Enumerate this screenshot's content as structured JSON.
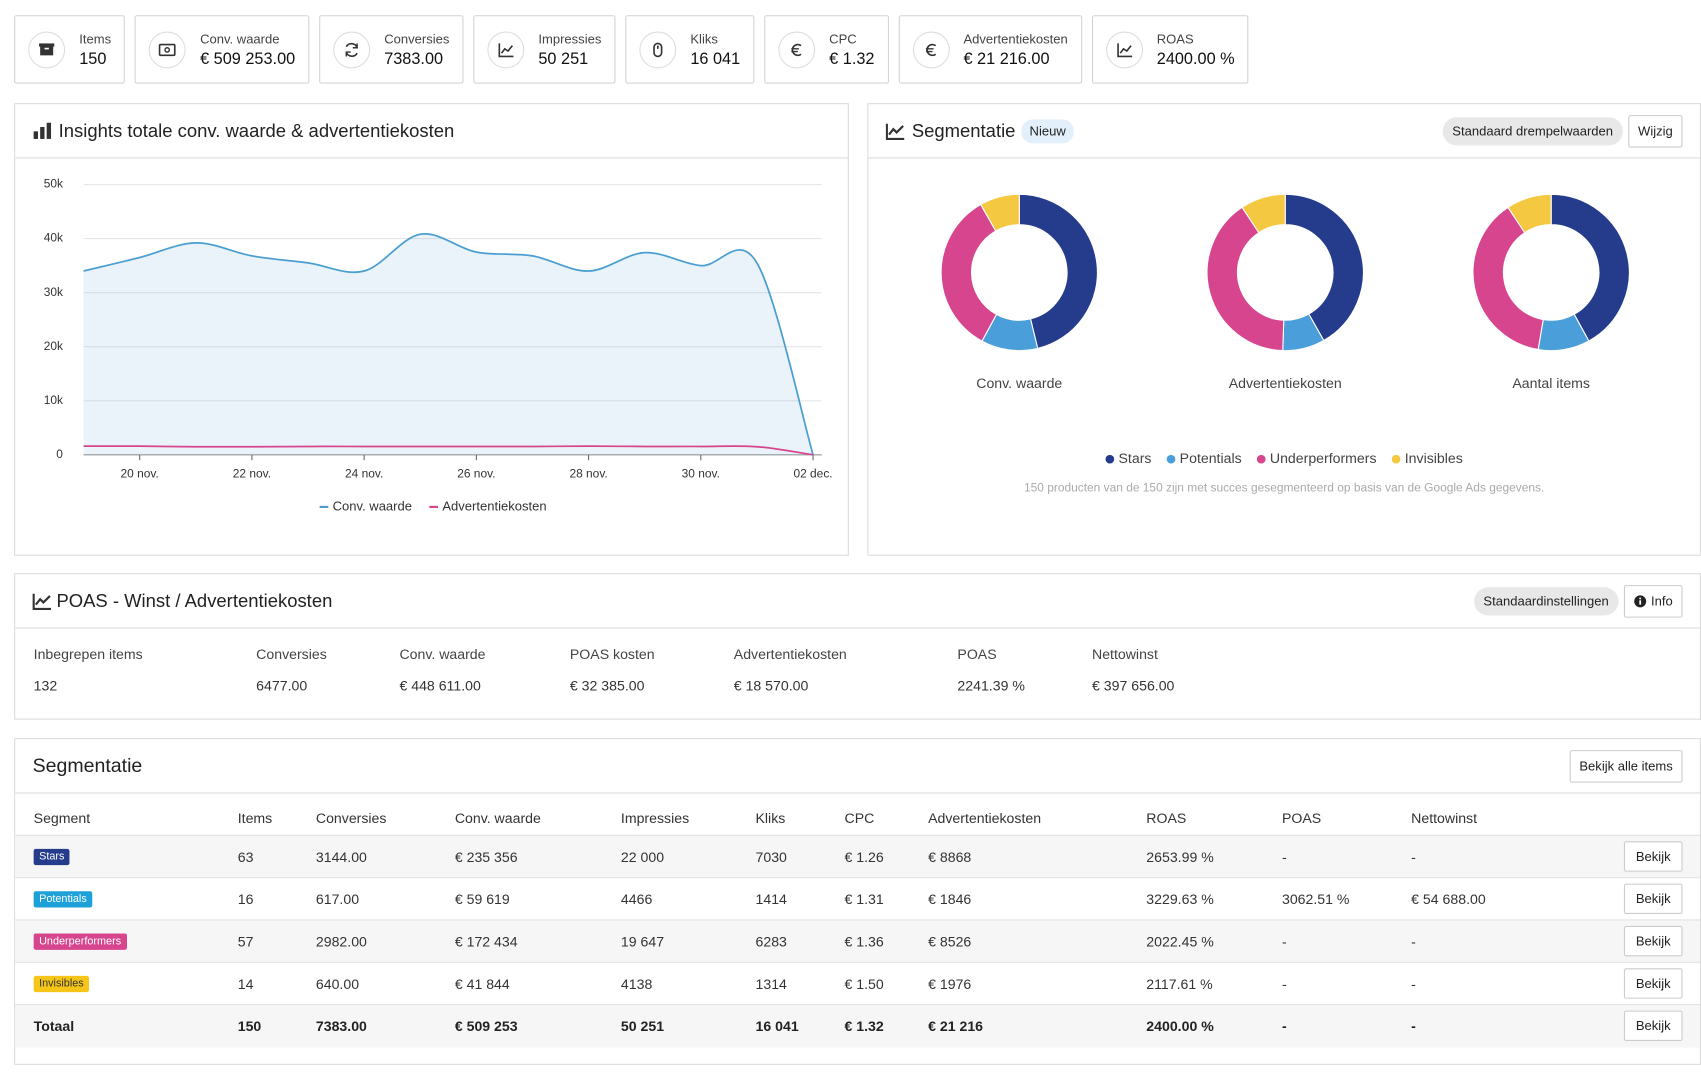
{
  "kpis": [
    {
      "label": "Items",
      "value": "150"
    },
    {
      "label": "Conv. waarde",
      "value": "€ 509 253.00"
    },
    {
      "label": "Conversies",
      "value": "7383.00"
    },
    {
      "label": "Impressies",
      "value": "50 251"
    },
    {
      "label": "Kliks",
      "value": "16 041"
    },
    {
      "label": "CPC",
      "value": "€ 1.32"
    },
    {
      "label": "Advertentiekosten",
      "value": "€ 21 216.00"
    },
    {
      "label": "ROAS",
      "value": "2400.00 %"
    }
  ],
  "segmentatie_panel": {
    "title": "Segmentatie",
    "badge": "Nieuw",
    "buttons": [
      "Standaard drempelwaarden",
      "Wijzig"
    ],
    "footnote": "150 producten van de 150 zijn met succes gesegmenteerd op basis van de Google Ads gegevens."
  },
  "poas": {
    "title": "POAS - Winst / Advertentiekosten",
    "buttons": [
      "Standaardinstellingen",
      "Info"
    ],
    "columns": [
      {
        "label": "Inbegrepen items",
        "value": "132"
      },
      {
        "label": "Conversies",
        "value": "6477.00"
      },
      {
        "label": "Conv. waarde",
        "value": "€ 448 611.00"
      },
      {
        "label": "POAS kosten",
        "value": "€ 32 385.00"
      },
      {
        "label": "Advertentiekosten",
        "value": "€ 18 570.00"
      },
      {
        "label": "POAS",
        "value": "2241.39 %"
      },
      {
        "label": "Nettowinst",
        "value": "€ 397 656.00"
      }
    ]
  },
  "table": {
    "title": "Segmentatie",
    "button": "Bekijk alle items",
    "headers": [
      "Segment",
      "Items",
      "Conversies",
      "Conv. waarde",
      "Impressies",
      "Kliks",
      "CPC",
      "Advertentiekosten",
      "ROAS",
      "POAS",
      "Nettowinst"
    ],
    "rows": [
      {
        "badge_color": "#253b8c",
        "badge_text_color": "#ffffff",
        "cells": [
          "Stars",
          "63",
          "3144.00",
          "€ 235 356",
          "22 000",
          "7030",
          "€ 1.26",
          "€ 8868",
          "2653.99 %",
          "-",
          "-"
        ],
        "action": "Bekijk"
      },
      {
        "badge_color": "#1ea0d8",
        "badge_text_color": "#ffffff",
        "cells": [
          "Potentials",
          "16",
          "617.00",
          "€ 59 619",
          "4466",
          "1414",
          "€ 1.31",
          "€ 1846",
          "3229.63 %",
          "3062.51 %",
          "€ 54 688.00"
        ],
        "action": "Bekijk"
      },
      {
        "badge_color": "#d6458e",
        "badge_text_color": "#ffffff",
        "cells": [
          "Underperformers",
          "57",
          "2982.00",
          "€ 172 434",
          "19 647",
          "6283",
          "€ 1.36",
          "€ 8526",
          "2022.45 %",
          "-",
          "-"
        ],
        "action": "Bekijk"
      },
      {
        "badge_color": "#f5c518",
        "badge_text_color": "#333333",
        "cells": [
          "Invisibles",
          "14",
          "640.00",
          "€ 41 844",
          "4138",
          "1314",
          "€ 1.50",
          "€ 1976",
          "2117.61 %",
          "-",
          "-"
        ],
        "action": "Bekijk"
      },
      {
        "total": true,
        "cells": [
          "Totaal",
          "150",
          "7383.00",
          "€ 509 253",
          "50 251",
          "16 041",
          "€ 1.32",
          "€ 21 216",
          "2400.00 %",
          "-",
          "-"
        ],
        "action": "Bekijk"
      }
    ]
  },
  "chart_data": [
    {
      "type": "line",
      "title": "Insights totale conv. waarde & advertentiekosten",
      "categories": [
        null,
        "20 nov.",
        null,
        "22 nov.",
        null,
        "24 nov.",
        null,
        "26 nov.",
        null,
        "28 nov.",
        null,
        "30 nov.",
        null,
        "02 dec."
      ],
      "series": [
        {
          "name": "Conv. waarde",
          "color": "#4a9fd0",
          "area": true,
          "values": [
            34000,
            36500,
            39200,
            36800,
            35500,
            34000,
            40800,
            37500,
            36800,
            34000,
            37400,
            35000,
            35500,
            0
          ]
        },
        {
          "name": "Advertentiekosten",
          "color": "#d6458e",
          "values": [
            1600,
            1600,
            1500,
            1500,
            1550,
            1550,
            1550,
            1550,
            1550,
            1600,
            1550,
            1550,
            1500,
            0
          ]
        }
      ],
      "ylim": [
        0,
        50000
      ],
      "yticks": [
        0,
        {
          "value": 10000,
          "label": "10k"
        },
        {
          "value": 20000,
          "label": "20k"
        },
        {
          "value": 30000,
          "label": "30k"
        },
        {
          "value": 40000,
          "label": "40k"
        },
        {
          "value": 50000,
          "label": "50k"
        }
      ],
      "grid": true,
      "legend": "bottom"
    },
    {
      "type": "pie",
      "donut": true,
      "title": "Conv. waarde",
      "categories": [
        "Stars",
        "Potentials",
        "Underperformers",
        "Invisibles"
      ],
      "colors": [
        "#253b8c",
        "#4a9fdb",
        "#d6458e",
        "#f5c842"
      ],
      "values": [
        235356,
        59619,
        172434,
        41844
      ]
    },
    {
      "type": "pie",
      "donut": true,
      "title": "Advertentiekosten",
      "categories": [
        "Stars",
        "Potentials",
        "Underperformers",
        "Invisibles"
      ],
      "colors": [
        "#253b8c",
        "#4a9fdb",
        "#d6458e",
        "#f5c842"
      ],
      "values": [
        8868,
        1846,
        8526,
        1976
      ]
    },
    {
      "type": "pie",
      "donut": true,
      "title": "Aantal items",
      "categories": [
        "Stars",
        "Potentials",
        "Underperformers",
        "Invisibles"
      ],
      "colors": [
        "#253b8c",
        "#4a9fdb",
        "#d6458e",
        "#f5c842"
      ],
      "values": [
        63,
        16,
        57,
        14
      ]
    }
  ]
}
